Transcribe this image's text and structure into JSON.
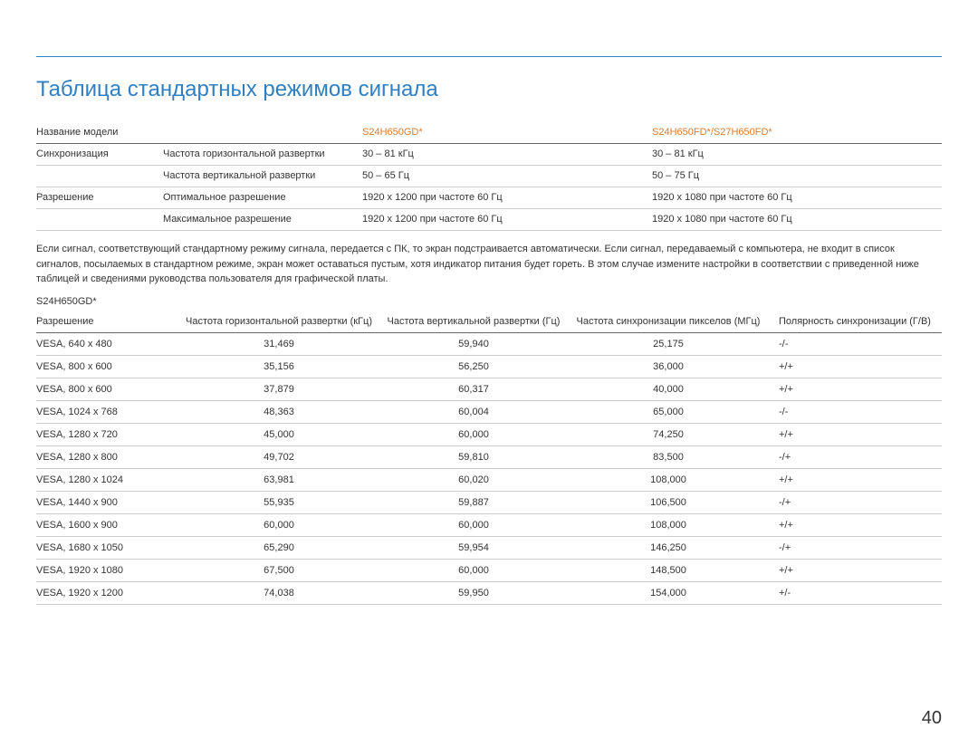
{
  "page_title": "Таблица стандартных режимов сигнала",
  "page_number": "40",
  "specs_table": {
    "col_widths": [
      "14%",
      "22%",
      "32%",
      "32%"
    ],
    "header_row": [
      "Название модели",
      "",
      "S24H650GD*",
      "S24H650FD*/S27H650FD*"
    ],
    "rows": [
      [
        "Синхронизация",
        "Частота горизонтальной развертки",
        "30 – 81 кГц",
        "30 – 81 кГц"
      ],
      [
        "",
        "Частота вертикальной развертки",
        "50 – 65 Гц",
        "50 – 75 Гц"
      ],
      [
        "Разрешение",
        "Оптимальное разрешение",
        "1920 x 1200 при частоте 60 Гц",
        "1920 x 1080 при частоте 60 Гц"
      ],
      [
        "",
        "Максимальное разрешение",
        "1920 x 1200 при частоте 60 Гц",
        "1920 x 1080 при частоте 60 Гц"
      ]
    ]
  },
  "body_text": "Если сигнал, соответствующий стандартному режиму сигнала, передается с ПК, то экран подстраивается автоматически. Если сигнал, передаваемый с компьютера, не входит в список сигналов, посылаемых в стандартном режиме, экран может оставаться пустым, хотя индикатор питания будет гореть. В этом случае измените настройки в соответствии с приведенной ниже таблицей и сведениями руководства пользователя для графической платы.",
  "modes_subhead": "S24H650GD*",
  "modes_table": {
    "col_widths": [
      "16%",
      "22%",
      "21%",
      "22%",
      "19%"
    ],
    "headers": [
      "Разрешение",
      "Частота горизонтальной развертки (кГц)",
      "Частота вертикальной развертки (Гц)",
      "Частота синхронизации пикселов (МГц)",
      "Полярность синхронизации (Г/В)"
    ],
    "rows": [
      [
        "VESA, 640 x 480",
        "31,469",
        "59,940",
        "25,175",
        "-/-"
      ],
      [
        "VESA, 800 x 600",
        "35,156",
        "56,250",
        "36,000",
        "+/+"
      ],
      [
        "VESA, 800 x 600",
        "37,879",
        "60,317",
        "40,000",
        "+/+"
      ],
      [
        "VESA, 1024 x 768",
        "48,363",
        "60,004",
        "65,000",
        "-/-"
      ],
      [
        "VESA, 1280 x 720",
        "45,000",
        "60,000",
        "74,250",
        "+/+"
      ],
      [
        "VESA, 1280 x 800",
        "49,702",
        "59,810",
        "83,500",
        "-/+"
      ],
      [
        "VESA, 1280 x 1024",
        "63,981",
        "60,020",
        "108,000",
        "+/+"
      ],
      [
        "VESA, 1440 x 900",
        "55,935",
        "59,887",
        "106,500",
        "-/+"
      ],
      [
        "VESA, 1600 x 900",
        "60,000",
        "60,000",
        "108,000",
        "+/+"
      ],
      [
        "VESA, 1680 x 1050",
        "65,290",
        "59,954",
        "146,250",
        "-/+"
      ],
      [
        "VESA, 1920 x 1080",
        "67,500",
        "60,000",
        "148,500",
        "+/+"
      ],
      [
        "VESA, 1920 x 1200",
        "74,038",
        "59,950",
        "154,000",
        "+/-"
      ]
    ]
  }
}
